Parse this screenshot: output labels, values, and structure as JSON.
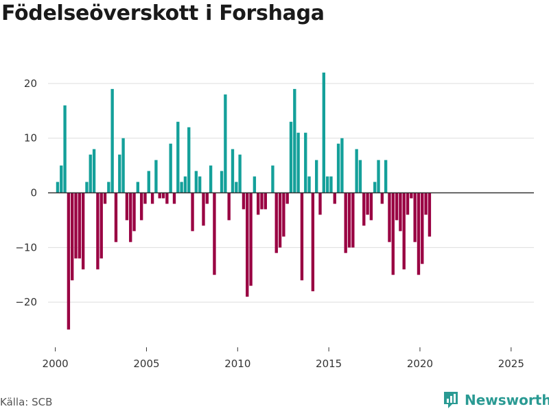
{
  "title": "Födelseöverskott i Forshaga",
  "source": "Källa: SCB",
  "brand": "Newsworthy",
  "colors": {
    "positive": "#14a09a",
    "negative": "#990042",
    "brand": "#2a9a93"
  },
  "chart_data": {
    "type": "bar",
    "title": "Födelseöverskott i Forshaga",
    "xlabel": "",
    "ylabel": "",
    "xlim": [
      1999.6,
      2026.25
    ],
    "ylim": [
      -28,
      25
    ],
    "yticks": [
      -20,
      -10,
      0,
      10,
      20
    ],
    "xticks": [
      2000,
      2005,
      2010,
      2015,
      2020,
      2025
    ],
    "grid": true,
    "interval": "month (approx., 12 bars per year)",
    "start": 2000.125,
    "step": 0.2,
    "values": [
      2,
      5,
      16,
      -25,
      -16,
      -12,
      -12,
      -14,
      2,
      7,
      8,
      -14,
      -12,
      -2,
      2,
      19,
      -9,
      7,
      10,
      -5,
      -9,
      -7,
      2,
      -5,
      -2,
      4,
      -2,
      6,
      -1,
      -1,
      -2,
      9,
      -2,
      13,
      2,
      3,
      12,
      -7,
      4,
      3,
      -6,
      -2,
      5,
      -15,
      0,
      4,
      18,
      -5,
      8,
      2,
      7,
      -3,
      -19,
      -17,
      3,
      -4,
      -3,
      -3,
      0,
      5,
      -11,
      -10,
      -8,
      -2,
      13,
      19,
      11,
      -16,
      11,
      3,
      -18,
      6,
      -4,
      22,
      3,
      3,
      -2,
      9,
      10,
      -11,
      -10,
      -10,
      8,
      6,
      -6,
      -4,
      -5,
      2,
      6,
      -2,
      6,
      -9,
      -15,
      -5,
      -7,
      -14,
      -4,
      -1,
      -9,
      -15,
      -13,
      -4,
      -8
    ]
  }
}
